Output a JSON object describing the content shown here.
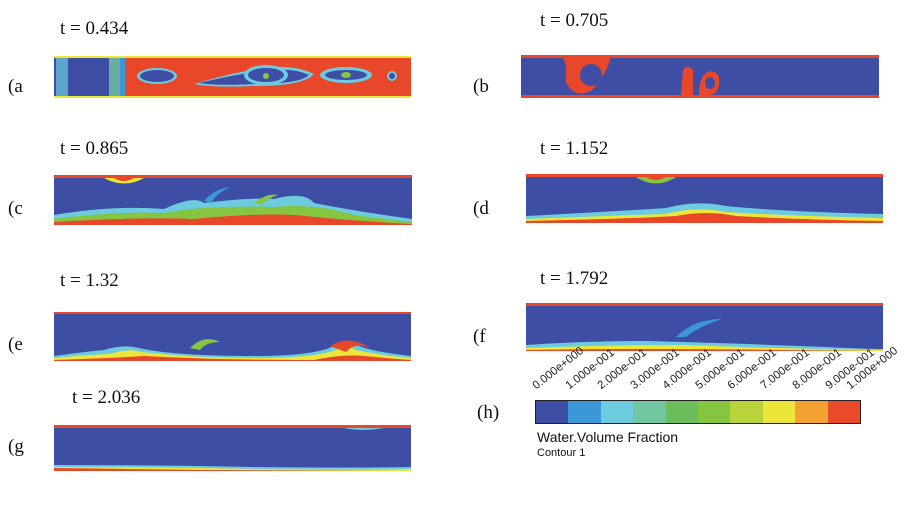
{
  "panels": [
    {
      "letter": "(a",
      "time": "t = 0.434"
    },
    {
      "letter": "(b",
      "time": "t = 0.705"
    },
    {
      "letter": "(c",
      "time": "t = 0.865"
    },
    {
      "letter": "(d",
      "time": "t = 1.152"
    },
    {
      "letter": "(e",
      "time": "t = 1.32"
    },
    {
      "letter": "(f",
      "time": "t = 1.792"
    },
    {
      "letter": "(g",
      "time": "t = 2.036"
    }
  ],
  "legend": {
    "letter": "(h)",
    "ticks": [
      "0.000e+000",
      "1.000e-001",
      "2.000e-001",
      "3.000e-001",
      "4.000e-001",
      "5.000e-001",
      "6.000e-001",
      "7.000e-001",
      "8.000e-001",
      "9.000e-001",
      "1.000e+000"
    ],
    "colors": [
      "#3f4ea5",
      "#3b97d8",
      "#6ccbdf",
      "#72c6a0",
      "#6bbd5c",
      "#86c540",
      "#b8d43a",
      "#ece63b",
      "#f4a133",
      "#e84a2a"
    ],
    "title": "Water.Volume Fraction",
    "subtitle": "Contour 1"
  },
  "fluid_colors": {
    "air": "#3f4ea5",
    "water": "#e8472a"
  }
}
